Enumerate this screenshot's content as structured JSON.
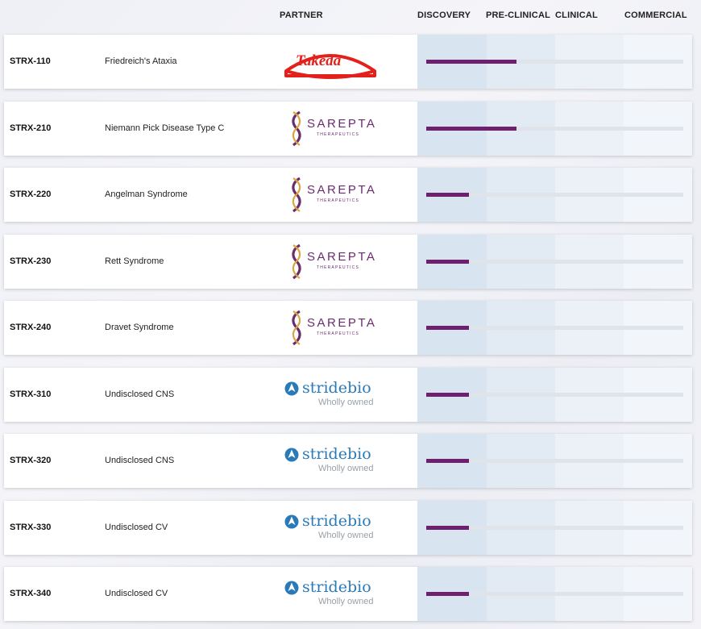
{
  "header": {
    "partner": "PARTNER",
    "phases": [
      "DISCOVERY",
      "PRE-CLINICAL",
      "CLINICAL",
      "COMMERCIAL"
    ]
  },
  "colors": {
    "bar": "#6e1f6e",
    "takeda": "#e3201b",
    "sarepta": "#6b2c6e",
    "stridebio": "#2a7ab8"
  },
  "chart_data": {
    "type": "bar",
    "orientation": "horizontal",
    "categories": [
      "STRX-110",
      "STRX-210",
      "STRX-220",
      "STRX-230",
      "STRX-240",
      "STRX-310",
      "STRX-320",
      "STRX-330",
      "STRX-340"
    ],
    "stages": [
      "DISCOVERY",
      "PRE-CLINICAL",
      "CLINICAL",
      "COMMERCIAL"
    ],
    "values": [
      1.4,
      1.4,
      0.67,
      0.67,
      0.67,
      0.67,
      0.67,
      0.67,
      0.67
    ],
    "xlim": [
      0,
      4
    ]
  },
  "programs": [
    {
      "code": "STRX-110",
      "indication": "Friedreich's Ataxia",
      "partner": "takeda",
      "partner_text": "Takeda",
      "progress": 1.4
    },
    {
      "code": "STRX-210",
      "indication": "Niemann Pick Disease Type C",
      "partner": "sarepta",
      "partner_text": "SAREPTA",
      "partner_sub": "THERAPEUTICS",
      "progress": 1.4
    },
    {
      "code": "STRX-220",
      "indication": "Angelman Syndrome",
      "partner": "sarepta",
      "partner_text": "SAREPTA",
      "partner_sub": "THERAPEUTICS",
      "progress": 0.67
    },
    {
      "code": "STRX-230",
      "indication": "Rett Syndrome",
      "partner": "sarepta",
      "partner_text": "SAREPTA",
      "partner_sub": "THERAPEUTICS",
      "progress": 0.67
    },
    {
      "code": "STRX-240",
      "indication": "Dravet Syndrome",
      "partner": "sarepta",
      "partner_text": "SAREPTA",
      "partner_sub": "THERAPEUTICS",
      "progress": 0.67
    },
    {
      "code": "STRX-310",
      "indication": "Undisclosed CNS",
      "partner": "stridebio",
      "partner_text": "stridebio",
      "partner_sub": "Wholly owned",
      "progress": 0.67
    },
    {
      "code": "STRX-320",
      "indication": "Undisclosed CNS",
      "partner": "stridebio",
      "partner_text": "stridebio",
      "partner_sub": "Wholly owned",
      "progress": 0.67
    },
    {
      "code": "STRX-330",
      "indication": "Undisclosed CV",
      "partner": "stridebio",
      "partner_text": "stridebio",
      "partner_sub": "Wholly owned",
      "progress": 0.67
    },
    {
      "code": "STRX-340",
      "indication": "Undisclosed CV",
      "partner": "stridebio",
      "partner_text": "stridebio",
      "partner_sub": "Wholly owned",
      "progress": 0.67
    }
  ]
}
